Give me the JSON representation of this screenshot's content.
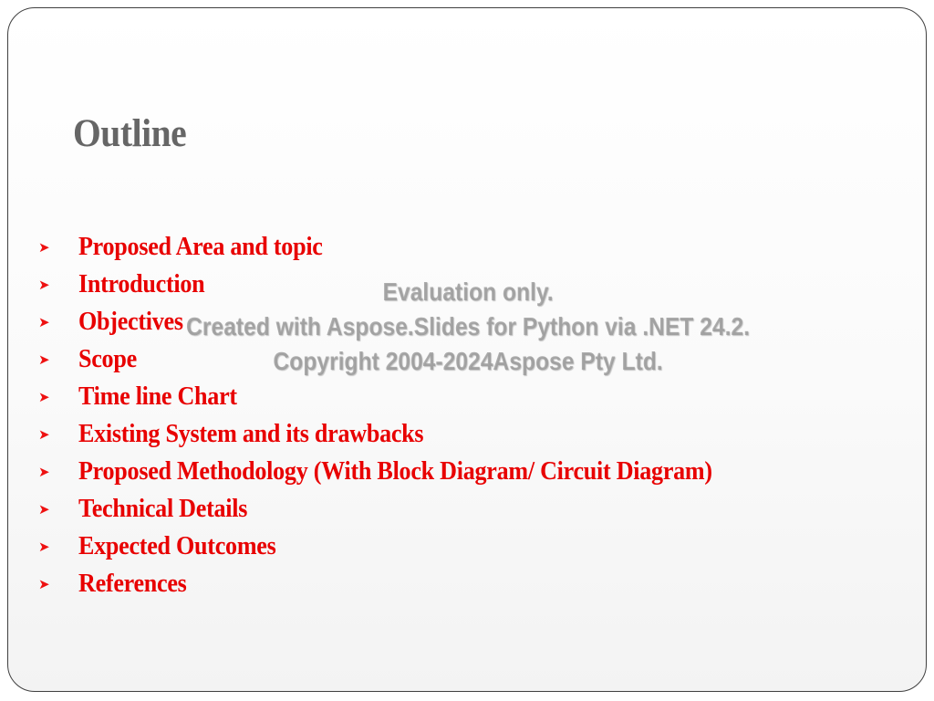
{
  "slide": {
    "title": "Outline",
    "bullet_icon": "arrow-bullet-icon",
    "accent_color": "#e80000",
    "title_color": "#666666",
    "bullets": [
      "Proposed Area and topic",
      "Introduction",
      "Objectives",
      "Scope",
      "Time line Chart",
      "Existing System and its drawbacks",
      "Proposed Methodology (With Block Diagram/ Circuit Diagram)",
      "Technical Details",
      "Expected Outcomes",
      "References"
    ]
  },
  "watermark": {
    "line1": "Evaluation only.",
    "line2": "Created with Aspose.Slides for Python via .NET 24.2.",
    "line3": "Copyright 2004-2024Aspose Pty Ltd."
  }
}
